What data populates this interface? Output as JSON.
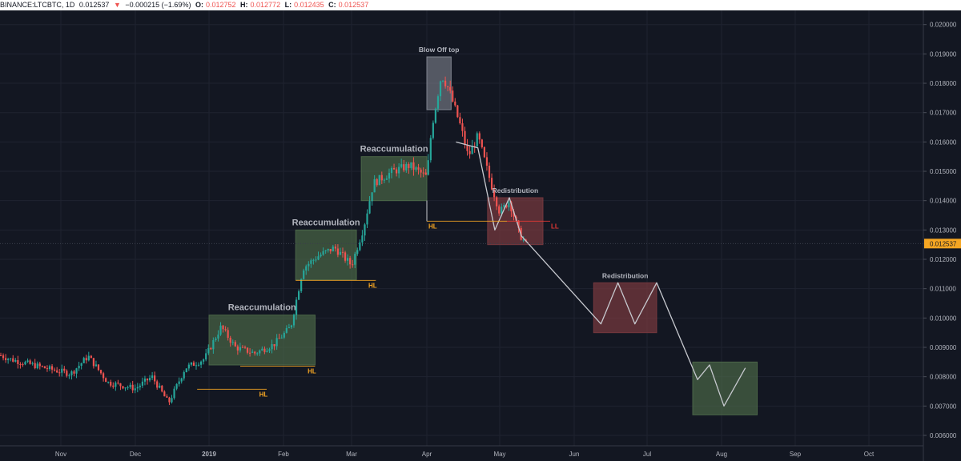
{
  "header": {
    "symbol": "BINANCE:LTCBTC, 1D",
    "last": "0.012537",
    "arrow": "▼",
    "change": "−0.000215 (−1.69%)",
    "o_label": "O:",
    "o_value": "0.012752",
    "h_label": "H:",
    "h_value": "0.012772",
    "l_label": "L:",
    "l_value": "0.012435",
    "c_label": "C:",
    "c_value": "0.012537"
  },
  "colors": {
    "background": "#131722",
    "up": "#26a69a",
    "down": "#ef5350",
    "axis_text": "#b2b5be",
    "annotation_text": "#b2b5be",
    "hl_text": "#f5a623",
    "ll_text": "#e53935",
    "accumulation_box": "#4f6b4a",
    "redistribution_box": "#7a3a3f",
    "blowoff_box": "#8a8e99",
    "price_badge": "#f5a623",
    "projection_line": "#c7c9cf"
  },
  "chart_data": {
    "type": "candlestick",
    "ylim": [
      0.0055,
      0.0205
    ],
    "yticks": [
      "0.006000",
      "0.007000",
      "0.008000",
      "0.009000",
      "0.010000",
      "0.011000",
      "0.012000",
      "0.013000",
      "0.014000",
      "0.015000",
      "0.016000",
      "0.017000",
      "0.018000",
      "0.019000",
      "0.020000"
    ],
    "ytick_values": [
      0.006,
      0.007,
      0.008,
      0.009,
      0.01,
      0.011,
      0.012,
      0.013,
      0.014,
      0.015,
      0.016,
      0.017,
      0.018,
      0.019,
      0.02
    ],
    "xticks": [
      "Nov",
      "Dec",
      "2019",
      "Feb",
      "Mar",
      "Apr",
      "May",
      "Jun",
      "Jul",
      "Aug",
      "Sep",
      "Oct"
    ],
    "xtick_dates": [
      "2018-11-01",
      "2018-12-01",
      "2019-01-01",
      "2019-02-01",
      "2019-03-01",
      "2019-04-01",
      "2019-05-01",
      "2019-06-01",
      "2019-07-01",
      "2019-08-01",
      "2019-09-01",
      "2019-10-01"
    ],
    "last_price": "0.012537",
    "price_path": [
      [
        "2018-10-01",
        0.0089
      ],
      [
        "2018-10-10",
        0.0086
      ],
      [
        "2018-10-25",
        0.0083
      ],
      [
        "2018-11-05",
        0.0081
      ],
      [
        "2018-11-12",
        0.0087
      ],
      [
        "2018-11-20",
        0.0078
      ],
      [
        "2018-12-01",
        0.0076
      ],
      [
        "2018-12-08",
        0.008
      ],
      [
        "2018-12-15",
        0.0071
      ],
      [
        "2018-12-22",
        0.0083
      ],
      [
        "2018-12-30",
        0.0086
      ],
      [
        "2019-01-06",
        0.0097
      ],
      [
        "2019-01-12",
        0.009
      ],
      [
        "2019-01-20",
        0.0088
      ],
      [
        "2019-01-28",
        0.0091
      ],
      [
        "2019-02-04",
        0.0097
      ],
      [
        "2019-02-09",
        0.0117
      ],
      [
        "2019-02-15",
        0.0121
      ],
      [
        "2019-02-22",
        0.0124
      ],
      [
        "2019-03-01",
        0.0118
      ],
      [
        "2019-03-06",
        0.0131
      ],
      [
        "2019-03-10",
        0.0146
      ],
      [
        "2019-03-18",
        0.015
      ],
      [
        "2019-03-25",
        0.0152
      ],
      [
        "2019-04-01",
        0.0148
      ],
      [
        "2019-04-03",
        0.0165
      ],
      [
        "2019-04-07",
        0.0183
      ],
      [
        "2019-04-10",
        0.0178
      ],
      [
        "2019-04-15",
        0.0165
      ],
      [
        "2019-04-18",
        0.0155
      ],
      [
        "2019-04-22",
        0.0162
      ],
      [
        "2019-04-27",
        0.0147
      ],
      [
        "2019-05-01",
        0.0136
      ],
      [
        "2019-05-05",
        0.014
      ],
      [
        "2019-05-09",
        0.0129
      ],
      [
        "2019-05-12",
        0.0125
      ]
    ],
    "projection_path": [
      [
        "2019-04-13",
        0.016
      ],
      [
        "2019-04-22",
        0.0158
      ],
      [
        "2019-04-29",
        0.013
      ],
      [
        "2019-05-05",
        0.0141
      ],
      [
        "2019-05-10",
        0.0128
      ],
      [
        "2019-06-12",
        0.0098
      ],
      [
        "2019-06-19",
        0.0112
      ],
      [
        "2019-06-26",
        0.0098
      ],
      [
        "2019-07-05",
        0.0112
      ],
      [
        "2019-07-22",
        0.0079
      ],
      [
        "2019-07-27",
        0.0084
      ],
      [
        "2019-08-02",
        0.007
      ],
      [
        "2019-08-11",
        0.0083
      ]
    ],
    "zones": [
      {
        "name": "Reaccumulation",
        "kind": "accumulation",
        "x0": "2019-01-01",
        "x1": "2019-02-14",
        "y0": 0.0084,
        "y1": 0.0101
      },
      {
        "name": "Reaccumulation",
        "kind": "accumulation",
        "x0": "2019-02-06",
        "x1": "2019-03-03",
        "y0": 0.0113,
        "y1": 0.013
      },
      {
        "name": "Reaccumulation",
        "kind": "accumulation",
        "x0": "2019-03-05",
        "x1": "2019-04-01",
        "y0": 0.014,
        "y1": 0.0155
      },
      {
        "name": "Blow Off top",
        "kind": "blowoff",
        "x0": "2019-04-01",
        "x1": "2019-04-11",
        "y0": 0.0171,
        "y1": 0.0189
      },
      {
        "name": "Redistribution",
        "kind": "redistribution",
        "x0": "2019-04-26",
        "x1": "2019-05-19",
        "y0": 0.0125,
        "y1": 0.0141
      },
      {
        "name": "Redistribution",
        "kind": "redistribution",
        "x0": "2019-06-09",
        "x1": "2019-07-05",
        "y0": 0.0095,
        "y1": 0.0112
      },
      {
        "name": "",
        "kind": "accumulation",
        "x0": "2019-07-20",
        "x1": "2019-08-16",
        "y0": 0.0067,
        "y1": 0.0085
      }
    ],
    "levels": [
      {
        "label": "HL",
        "kind": "hl",
        "x0": "2018-12-27",
        "x1": "2019-01-25",
        "y": 0.00757
      },
      {
        "label": "HL",
        "kind": "hl",
        "x0": "2019-01-14",
        "x1": "2019-02-14",
        "y": 0.00836
      },
      {
        "label": "HL",
        "kind": "hl",
        "x0": "2019-02-06",
        "x1": "2019-03-11",
        "y": 0.01128
      },
      {
        "label": "HL",
        "kind": "hl",
        "x0": "2019-04-01",
        "x1": "2019-05-04",
        "y": 0.0133
      },
      {
        "label": "LL",
        "kind": "ll",
        "x0": "2019-05-04",
        "x1": "2019-05-22",
        "y": 0.0133
      }
    ]
  }
}
